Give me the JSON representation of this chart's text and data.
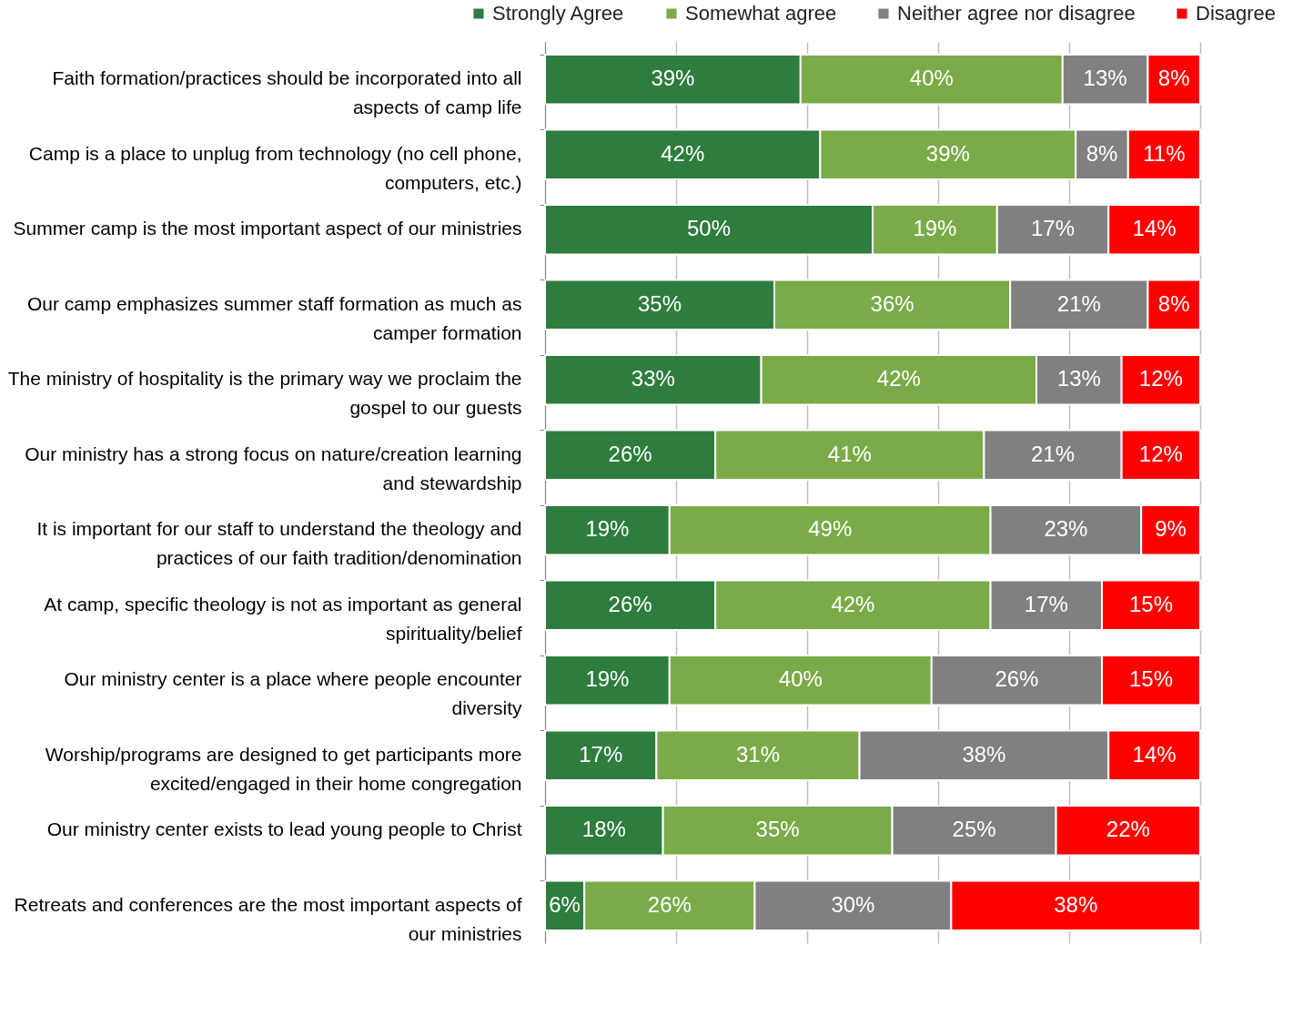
{
  "chart_data": {
    "type": "bar",
    "orientation": "horizontal",
    "stacked": true,
    "categories": [
      "Faith formation/practices should be incorporated into all aspects of camp life",
      "Camp is a place to unplug from technology (no cell phone, computers, etc.)",
      "Summer camp is the most important aspect of our ministries",
      "Our camp emphasizes summer staff formation as much as camper formation",
      "The ministry of hospitality is the primary way we proclaim the gospel to our guests",
      "Our ministry has a strong focus on nature/creation learning and stewardship",
      "It is important for our staff to understand the theology and practices of our faith tradition/denomination",
      "At camp, specific theology is not as important as general spirituality/belief",
      "Our ministry center is a place where people encounter diversity",
      "Worship/programs are designed to get participants more excited/engaged in their home congregation",
      "Our ministry center exists to lead young people to Christ",
      "Retreats and conferences are the most important aspects of our ministries"
    ],
    "series": [
      {
        "name": "Strongly Agree",
        "color": "#2e7d3e",
        "values": [
          39,
          42,
          50,
          35,
          33,
          26,
          19,
          26,
          19,
          17,
          18,
          6
        ],
        "value_labels": [
          "39%",
          "42%",
          "50%",
          "35%",
          "33%",
          "26%",
          "19%",
          "26%",
          "19%",
          "17%",
          "18%",
          "6%"
        ]
      },
      {
        "name": "Somewhat agree",
        "color": "#7aab48",
        "values": [
          40,
          39,
          19,
          36,
          42,
          41,
          49,
          42,
          40,
          31,
          35,
          26
        ],
        "value_labels": [
          "40%",
          "39%",
          "19%",
          "36%",
          "42%",
          "41%",
          "49%",
          "42%",
          "40%",
          "31%",
          "35%",
          "26%"
        ]
      },
      {
        "name": "Neither agree nor disagree",
        "color": "#808080",
        "values": [
          13,
          8,
          17,
          21,
          13,
          21,
          23,
          17,
          26,
          38,
          25,
          30
        ],
        "value_labels": [
          "13%",
          "8%",
          "17%",
          "21%",
          "13%",
          "21%",
          "23%",
          "17%",
          "26%",
          "38%",
          "25%",
          "30%"
        ]
      },
      {
        "name": "Disagree",
        "color": "#ff0000",
        "values": [
          8,
          11,
          14,
          8,
          12,
          12,
          9,
          15,
          15,
          14,
          22,
          38
        ],
        "value_labels": [
          "8%",
          "11%",
          "14%",
          "8%",
          "12%",
          "12%",
          "9%",
          "15%",
          "15%",
          "14%",
          "22%",
          "38%"
        ]
      }
    ],
    "xlim": [
      0,
      100
    ],
    "xticks": [
      {
        "value": 0,
        "label": null
      },
      {
        "value": 20,
        "label": null
      },
      {
        "value": 40,
        "label": null
      },
      {
        "value": 60,
        "label": null
      },
      {
        "value": 80,
        "label": null
      },
      {
        "value": 100,
        "label": null
      }
    ],
    "grid": "x",
    "legend": "top",
    "tick_labels": "y"
  }
}
